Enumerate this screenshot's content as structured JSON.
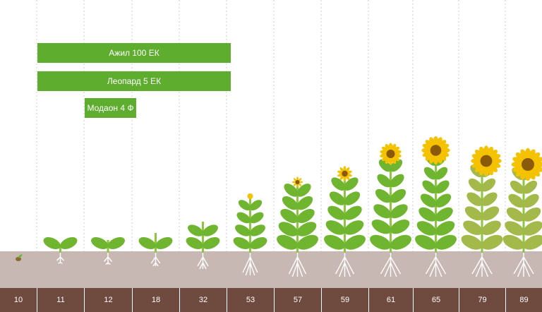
{
  "products": [
    {
      "label": "Ажил 100 ЕК",
      "from_stage": "11",
      "to_stage": "53",
      "color": "#5fad2f"
    },
    {
      "label": "Леопард 5 ЕК",
      "from_stage": "11",
      "to_stage": "53",
      "color": "#5fad2f"
    },
    {
      "label": "Модаон 4 Ф",
      "from_stage": "12",
      "to_stage": "18",
      "color": "#5fad2f"
    }
  ],
  "growth_stages": [
    "10",
    "11",
    "12",
    "18",
    "32",
    "53",
    "57",
    "59",
    "61",
    "65",
    "79",
    "89"
  ],
  "plant_phases": [
    "seed",
    "cotyledons",
    "two-leaf",
    "four-leaf",
    "six-leaf",
    "bud",
    "bud-elongated",
    "bud-opening",
    "flowering-start",
    "full-flowering",
    "seed-development",
    "ripening"
  ],
  "colors": {
    "bar": "#5fad2f",
    "soil": "#c8b8b3",
    "strip": "#6e4a3f",
    "leaf": "#6fb52f",
    "leaf_aged": "#a3b94a",
    "stem": "#8cc63f",
    "petal": "#f5c200",
    "disc": "#8a5a0a",
    "root": "#ffffff",
    "divider": "#cfcfcf"
  }
}
